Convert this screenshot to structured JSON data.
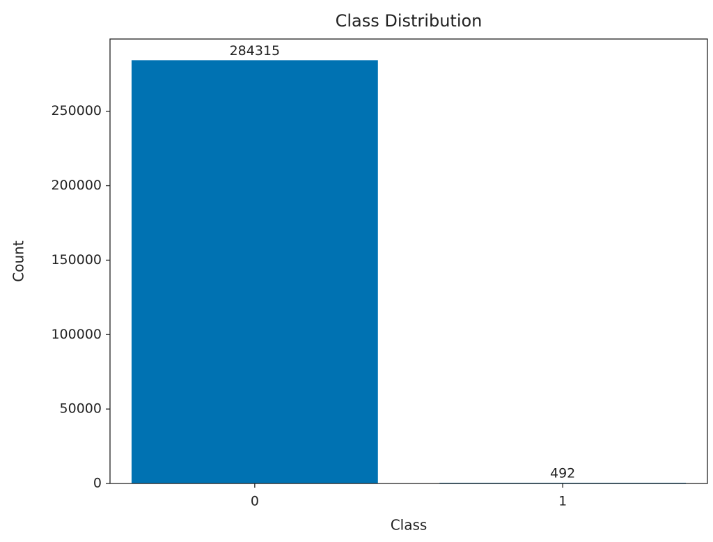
{
  "chart_data": {
    "type": "bar",
    "title": "Class Distribution",
    "x_label": "Class",
    "y_label": "Count",
    "categories": [
      "0",
      "1"
    ],
    "values": [
      284315,
      492
    ],
    "color": "#0072b2",
    "ylim": [
      0,
      298530.75
    ],
    "yticks": [
      0,
      50000,
      100000,
      150000,
      200000,
      250000
    ],
    "grid": false
  }
}
